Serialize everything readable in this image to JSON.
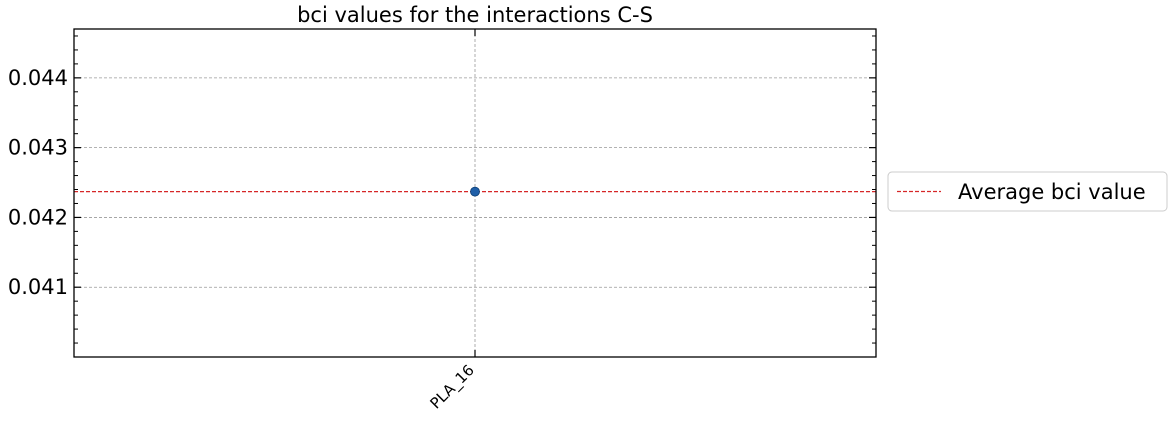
{
  "chart_data": {
    "type": "scatter",
    "title": "bci values for the interactions C-S",
    "xlabel": "",
    "ylabel": "",
    "categories": [
      "PLA_16"
    ],
    "series": [
      {
        "values": [
          0.04237
        ],
        "color": "#1f5fa8"
      }
    ],
    "reference_lines": [
      {
        "name": "Average bci value",
        "y": 0.04237,
        "color": "#d62728",
        "style": "dashed"
      }
    ],
    "ylim": [
      0.04,
      0.0447
    ],
    "yticks": [
      0.041,
      0.042,
      0.043,
      0.044
    ],
    "ytick_labels": [
      "0.041",
      "0.042",
      "0.043",
      "0.044"
    ],
    "grid": true,
    "legend": {
      "placement": "outside-right",
      "entries": [
        "Average bci value"
      ]
    }
  }
}
